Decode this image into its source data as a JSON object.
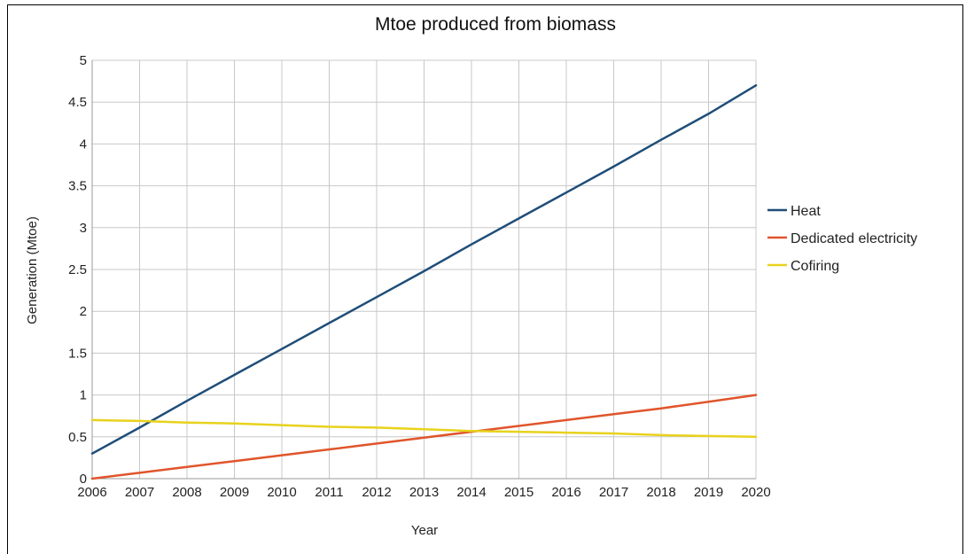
{
  "chart_data": {
    "type": "line",
    "title": "Mtoe produced from biomass",
    "xlabel": "Year",
    "ylabel": "Generation (Mtoe)",
    "x": [
      2006,
      2007,
      2008,
      2009,
      2010,
      2011,
      2012,
      2013,
      2014,
      2015,
      2016,
      2017,
      2018,
      2019,
      2020
    ],
    "x_tick_labels": [
      "2006",
      "2007",
      "2008",
      "2009",
      "2010",
      "2011",
      "2012",
      "2013",
      "2014",
      "2015",
      "2016",
      "2017",
      "2018",
      "2019",
      "2020"
    ],
    "xlim": [
      2006,
      2020
    ],
    "ylim": [
      0,
      5
    ],
    "y_ticks": [
      0,
      0.5,
      1,
      1.5,
      2,
      2.5,
      3,
      3.5,
      4,
      4.5,
      5
    ],
    "y_tick_labels": [
      "0",
      "0.5",
      "1",
      "1.5",
      "2",
      "2.5",
      "3",
      "3.5",
      "4",
      "4.5",
      "5"
    ],
    "grid": "horizontal and vertical",
    "legend_position": "right",
    "series": [
      {
        "name": "Heat",
        "color": "#1f4e79",
        "values": [
          0.3,
          0.61,
          0.93,
          1.24,
          1.55,
          1.86,
          2.17,
          2.48,
          2.8,
          3.11,
          3.42,
          3.73,
          4.05,
          4.36,
          4.7
        ]
      },
      {
        "name": "Dedicated electricity",
        "color": "#e0552b",
        "values": [
          0.0,
          0.07,
          0.14,
          0.21,
          0.28,
          0.35,
          0.42,
          0.49,
          0.56,
          0.63,
          0.7,
          0.77,
          0.84,
          0.92,
          1.0
        ]
      },
      {
        "name": "Cofiring",
        "color": "#e8d21d",
        "values": [
          0.7,
          0.69,
          0.67,
          0.66,
          0.64,
          0.62,
          0.61,
          0.59,
          0.57,
          0.56,
          0.55,
          0.54,
          0.52,
          0.51,
          0.5
        ]
      }
    ]
  }
}
